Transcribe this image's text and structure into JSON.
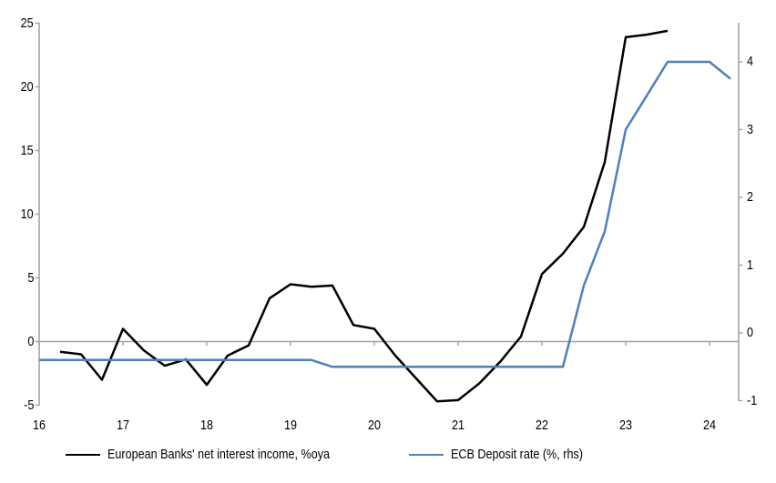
{
  "chart_data": {
    "type": "line",
    "title": "",
    "legend_position": "bottom",
    "grid": "zero-line-only",
    "x_axis": {
      "tick_labels": [
        "16",
        "17",
        "18",
        "19",
        "20",
        "21",
        "22",
        "23",
        "24"
      ],
      "tick_values": [
        16,
        17,
        18,
        19,
        20,
        21,
        22,
        23,
        24
      ],
      "range": [
        16,
        24.35
      ]
    },
    "left_axis": {
      "ticks": [
        25,
        20,
        15,
        10,
        5,
        0,
        -5
      ],
      "range": [
        -5,
        25
      ]
    },
    "right_axis": {
      "ticks": [
        4,
        3,
        2,
        1,
        0,
        -1
      ],
      "range": [
        -1,
        4.7
      ]
    },
    "series": [
      {
        "name": "European Banks' net interest income, %oya",
        "axis": "left",
        "color": "#000000",
        "x": [
          16.25,
          16.5,
          16.75,
          17.0,
          17.25,
          17.5,
          17.75,
          18.0,
          18.25,
          18.5,
          18.75,
          19.0,
          19.25,
          19.5,
          19.75,
          20.0,
          20.25,
          20.5,
          20.75,
          21.0,
          21.25,
          21.5,
          21.75,
          22.0,
          22.25,
          22.5,
          22.75,
          23.0,
          23.25,
          23.5
        ],
        "values": [
          -0.8,
          -1.0,
          -3.0,
          1.0,
          -0.7,
          -1.9,
          -1.4,
          -3.4,
          -1.1,
          -0.3,
          3.4,
          4.5,
          4.3,
          4.4,
          1.3,
          1.0,
          -1.1,
          -2.9,
          -4.7,
          -4.6,
          -3.3,
          -1.6,
          0.4,
          5.3,
          6.9,
          9.0,
          14.1,
          23.9,
          24.1,
          24.4
        ]
      },
      {
        "name": "ECB Deposit rate (%, rhs)",
        "axis": "right",
        "color": "#4d80bc",
        "x": [
          16.0,
          16.25,
          16.5,
          16.75,
          17.0,
          17.25,
          17.5,
          17.75,
          18.0,
          18.25,
          18.5,
          18.75,
          19.0,
          19.25,
          19.5,
          19.75,
          20.0,
          20.25,
          20.5,
          20.75,
          21.0,
          21.25,
          21.5,
          21.75,
          22.0,
          22.25,
          22.5,
          22.75,
          23.0,
          23.25,
          23.5,
          23.75,
          24.0,
          24.25
        ],
        "values": [
          -0.4,
          -0.4,
          -0.4,
          -0.4,
          -0.4,
          -0.4,
          -0.4,
          -0.4,
          -0.4,
          -0.4,
          -0.4,
          -0.4,
          -0.4,
          -0.4,
          -0.5,
          -0.5,
          -0.5,
          -0.5,
          -0.5,
          -0.5,
          -0.5,
          -0.5,
          -0.5,
          -0.5,
          -0.5,
          -0.5,
          0.7,
          1.5,
          3.0,
          3.5,
          4.0,
          4.0,
          4.0,
          3.75
        ]
      }
    ],
    "colors": {
      "axis_gray": "#a3a3a3",
      "series_black": "#000000",
      "series_blue": "#4d80bc"
    }
  }
}
